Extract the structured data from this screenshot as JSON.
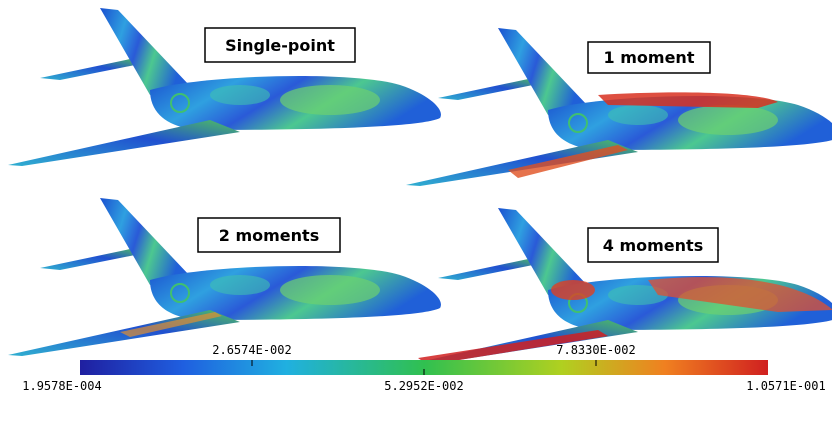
{
  "panels": [
    {
      "label": "Single-point"
    },
    {
      "label": "1 moment"
    },
    {
      "label": "2 moments"
    },
    {
      "label": "4 moments"
    }
  ],
  "colorbar": {
    "top_labels": [
      "2.6574E-002",
      "7.8330E-002"
    ],
    "bottom_labels": [
      "1.9578E-004",
      "5.2952E-002",
      "1.0571E-001"
    ]
  }
}
